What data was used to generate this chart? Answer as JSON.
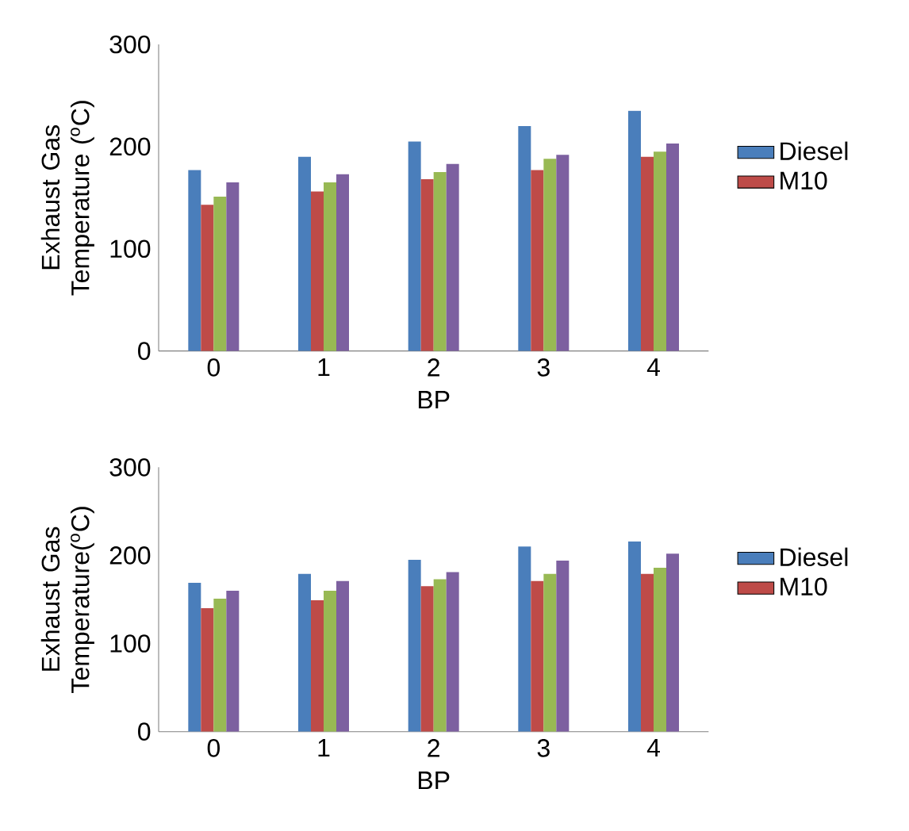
{
  "chart_data": [
    {
      "type": "bar",
      "categories": [
        "0",
        "1",
        "2",
        "3",
        "4"
      ],
      "xlabel": "BP",
      "ylabel": "Exhaust Gas Temperature ($^{o}$C)",
      "ylim": [
        0,
        300
      ],
      "yticks": [
        0,
        100,
        200,
        300
      ],
      "legend": "right",
      "series": [
        {
          "name": "Diesel",
          "color": "#4a7ebb",
          "values": [
            177,
            190,
            205,
            220,
            235
          ]
        },
        {
          "name": "M10",
          "color": "#be4b48",
          "values": [
            143,
            156,
            168,
            177,
            190
          ]
        },
        {
          "color": "#98b954",
          "values": [
            151,
            165,
            175,
            188,
            195
          ]
        },
        {
          "color": "#7d60a0",
          "values": [
            165,
            173,
            183,
            192,
            203
          ]
        }
      ]
    },
    {
      "type": "bar",
      "categories": [
        "0",
        "1",
        "2",
        "3",
        "4"
      ],
      "xlabel": "BP",
      "ylabel": "Exhaust Gas Temperature($^{o}$C)",
      "ylim": [
        0,
        300
      ],
      "yticks": [
        0,
        100,
        200,
        300
      ],
      "legend": "right",
      "series": [
        {
          "name": "Diesel",
          "color": "#4a7ebb",
          "values": [
            169,
            179,
            195,
            210,
            216
          ]
        },
        {
          "name": "M10",
          "color": "#be4b48",
          "values": [
            140,
            149,
            165,
            171,
            179
          ]
        },
        {
          "color": "#98b954",
          "values": [
            151,
            160,
            173,
            179,
            186
          ]
        },
        {
          "color": "#7d60a0",
          "values": [
            160,
            171,
            181,
            194,
            202
          ]
        }
      ]
    }
  ]
}
